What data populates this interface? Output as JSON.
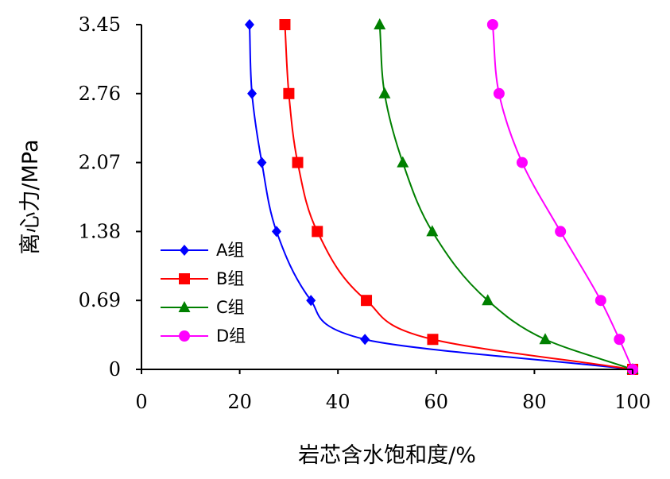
{
  "chart_data": {
    "type": "line",
    "title": "",
    "xlabel": "岩芯含水饱和度/%",
    "ylabel": "离心力/MPa",
    "xlim": [
      0,
      100
    ],
    "ylim": [
      0,
      3.45
    ],
    "x_ticks": [
      0,
      20,
      40,
      60,
      80,
      100
    ],
    "x_tick_labels": [
      "0",
      "20",
      "40",
      "60",
      "80",
      "100"
    ],
    "y_ticks": [
      0,
      0.69,
      1.38,
      2.07,
      2.76,
      3.45
    ],
    "y_tick_labels": [
      "0",
      "0.69",
      "1.38",
      "2.07",
      "2.76",
      "3.45"
    ],
    "grid": false,
    "legend_position": "left",
    "series": [
      {
        "name": "A组",
        "color": "#0000ff",
        "marker": "diamond",
        "points": [
          [
            100,
            0
          ],
          [
            45.5,
            0.3
          ],
          [
            34.5,
            0.69
          ],
          [
            27.5,
            1.38
          ],
          [
            24.5,
            2.07
          ],
          [
            22.5,
            2.76
          ],
          [
            22,
            3.45
          ]
        ]
      },
      {
        "name": "B组",
        "color": "#ff0000",
        "marker": "square",
        "points": [
          [
            100,
            0
          ],
          [
            59.3,
            0.3
          ],
          [
            45.8,
            0.69
          ],
          [
            35.8,
            1.38
          ],
          [
            31.8,
            2.07
          ],
          [
            30,
            2.76
          ],
          [
            29.2,
            3.45
          ]
        ]
      },
      {
        "name": "C组",
        "color": "#008000",
        "marker": "triangle",
        "points": [
          [
            100,
            0
          ],
          [
            82.2,
            0.3
          ],
          [
            70.5,
            0.69
          ],
          [
            59.2,
            1.38
          ],
          [
            53.2,
            2.07
          ],
          [
            49.5,
            2.76
          ],
          [
            48.5,
            3.45
          ]
        ]
      },
      {
        "name": "D组",
        "color": "#ff00ff",
        "marker": "circle",
        "points": [
          [
            100,
            0
          ],
          [
            97.3,
            0.3
          ],
          [
            93.5,
            0.69
          ],
          [
            85.3,
            1.38
          ],
          [
            77.5,
            2.07
          ],
          [
            72.8,
            2.76
          ],
          [
            71.5,
            3.45
          ]
        ]
      }
    ]
  }
}
